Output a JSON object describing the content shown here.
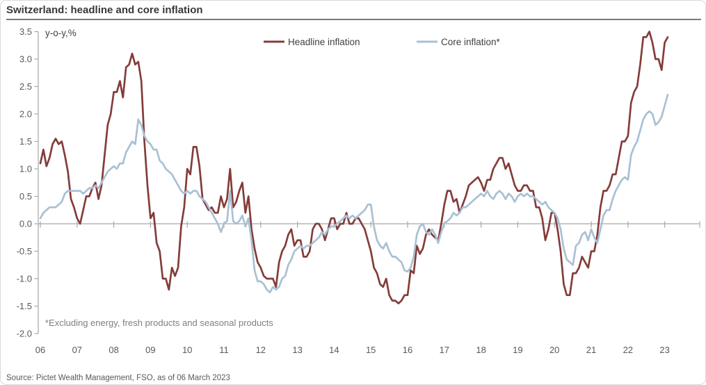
{
  "header": {
    "title": "Switzerland: headline and core inflation"
  },
  "footer": {
    "source": "Source: Pictet Wealth Management, FSO, as of 06 March 2023"
  },
  "chart": {
    "unit_label": "y-o-y,%",
    "footnote": "*Excluding energy, fresh products and seasonal products",
    "legend": [
      {
        "label": "Headline inflation"
      },
      {
        "label": "Core inflation*"
      }
    ]
  },
  "chart_data": {
    "type": "line",
    "title": "Switzerland: headline and core inflation",
    "xlabel": "",
    "ylabel": "y-o-y,%",
    "ylim": [
      -2.0,
      3.5
    ],
    "y_tick_labels": [
      "3.5",
      "3.0",
      "2.5",
      "2.0",
      "1.5",
      "1.0",
      "0.5",
      "0.0",
      "-0.5",
      "-1.0",
      "-1.5",
      "-2.0"
    ],
    "x_tick_labels": [
      "06",
      "07",
      "08",
      "09",
      "10",
      "11",
      "12",
      "13",
      "14",
      "15",
      "16",
      "17",
      "18",
      "19",
      "20",
      "21",
      "22",
      "23"
    ],
    "x_start": "2006-01",
    "x_end": "2023-02",
    "frequency": "monthly",
    "grid": "zero-line-only",
    "legend_position": "top",
    "axis_color": "#a6a6a6",
    "series": [
      {
        "name": "Headline inflation",
        "color": "#843C39",
        "values": [
          1.1,
          1.35,
          1.05,
          1.2,
          1.45,
          1.55,
          1.45,
          1.5,
          1.25,
          0.95,
          0.45,
          0.3,
          0.1,
          0.0,
          0.25,
          0.5,
          0.5,
          0.65,
          0.75,
          0.45,
          0.7,
          1.25,
          1.8,
          2.0,
          2.4,
          2.4,
          2.6,
          2.3,
          2.85,
          2.9,
          3.1,
          2.9,
          2.95,
          2.6,
          1.5,
          0.7,
          0.1,
          0.2,
          -0.35,
          -0.5,
          -1.0,
          -1.0,
          -1.2,
          -0.8,
          -0.95,
          -0.8,
          -0.05,
          0.3,
          1.0,
          0.9,
          1.4,
          1.4,
          1.05,
          0.45,
          0.35,
          0.25,
          0.3,
          0.2,
          0.2,
          0.5,
          0.3,
          0.45,
          1.0,
          0.3,
          0.4,
          0.6,
          0.75,
          0.2,
          0.5,
          -0.1,
          -0.45,
          -0.7,
          -0.8,
          -0.95,
          -1.0,
          -1.0,
          -1.0,
          -1.15,
          -0.7,
          -0.5,
          -0.4,
          -0.2,
          -0.1,
          -0.4,
          -0.3,
          -0.3,
          -0.6,
          -0.6,
          -0.5,
          -0.1,
          0.0,
          0.0,
          -0.1,
          -0.3,
          -0.1,
          0.1,
          0.1,
          -0.1,
          0.0,
          0.0,
          0.2,
          0.0,
          0.0,
          0.1,
          0.1,
          0.0,
          -0.1,
          -0.3,
          -0.5,
          -0.8,
          -0.9,
          -1.1,
          -1.15,
          -1.0,
          -1.3,
          -1.4,
          -1.4,
          -1.45,
          -1.4,
          -1.3,
          -1.3,
          -0.85,
          -0.9,
          -0.4,
          -0.55,
          -0.45,
          -0.2,
          -0.1,
          -0.2,
          -0.25,
          -0.3,
          0.0,
          0.35,
          0.6,
          0.6,
          0.4,
          0.45,
          0.2,
          0.35,
          0.5,
          0.7,
          0.75,
          0.8,
          0.85,
          0.75,
          0.6,
          0.8,
          0.8,
          1.0,
          1.1,
          1.2,
          1.2,
          1.0,
          1.1,
          0.9,
          0.7,
          0.6,
          0.6,
          0.7,
          0.7,
          0.6,
          0.6,
          0.3,
          0.3,
          0.1,
          -0.3,
          -0.1,
          0.2,
          0.2,
          -0.1,
          -0.5,
          -1.1,
          -1.3,
          -1.3,
          -0.9,
          -0.9,
          -0.8,
          -0.6,
          -0.7,
          -0.8,
          -0.5,
          -0.5,
          -0.2,
          0.3,
          0.6,
          0.6,
          0.7,
          0.9,
          0.9,
          1.2,
          1.5,
          1.5,
          1.6,
          2.2,
          2.4,
          2.5,
          2.9,
          3.4,
          3.4,
          3.5,
          3.3,
          3.0,
          3.0,
          2.8,
          3.3,
          3.4
        ]
      },
      {
        "name": "Core inflation*",
        "color": "#A9C0D4",
        "values": [
          0.1,
          0.2,
          0.25,
          0.3,
          0.3,
          0.3,
          0.35,
          0.4,
          0.55,
          0.6,
          0.6,
          0.6,
          0.6,
          0.6,
          0.55,
          0.6,
          0.65,
          0.65,
          0.7,
          0.65,
          0.75,
          0.85,
          0.95,
          1.0,
          1.05,
          1.0,
          1.1,
          1.1,
          1.3,
          1.4,
          1.5,
          1.45,
          1.9,
          1.8,
          1.6,
          1.5,
          1.45,
          1.35,
          1.35,
          1.15,
          1.1,
          1.0,
          0.95,
          0.9,
          0.8,
          0.7,
          0.6,
          0.55,
          0.6,
          0.55,
          0.6,
          0.6,
          0.5,
          0.45,
          0.4,
          0.3,
          0.2,
          0.1,
          0.0,
          -0.15,
          0.0,
          0.05,
          0.6,
          0.05,
          0.0,
          0.05,
          0.15,
          -0.05,
          0.1,
          -0.3,
          -0.85,
          -1.05,
          -1.05,
          -1.1,
          -1.2,
          -1.25,
          -1.15,
          -1.2,
          -1.15,
          -1.0,
          -0.95,
          -0.75,
          -0.65,
          -0.5,
          -0.45,
          -0.4,
          -0.45,
          -0.4,
          -0.4,
          -0.35,
          -0.3,
          -0.25,
          -0.15,
          -0.2,
          -0.1,
          -0.05,
          -0.05,
          0.0,
          0.05,
          0.1,
          0.15,
          0.1,
          0.15,
          0.1,
          0.15,
          0.2,
          0.25,
          0.35,
          0.35,
          -0.05,
          -0.3,
          -0.4,
          -0.45,
          -0.35,
          -0.5,
          -0.6,
          -0.6,
          -0.65,
          -0.7,
          -0.85,
          -0.87,
          -0.8,
          -0.6,
          -0.2,
          -0.05,
          0.0,
          -0.15,
          -0.2,
          -0.1,
          -0.2,
          -0.35,
          -0.15,
          0.0,
          0.05,
          0.1,
          0.2,
          0.15,
          0.2,
          0.3,
          0.3,
          0.35,
          0.4,
          0.45,
          0.5,
          0.55,
          0.5,
          0.6,
          0.5,
          0.45,
          0.55,
          0.6,
          0.55,
          0.45,
          0.55,
          0.5,
          0.4,
          0.5,
          0.55,
          0.5,
          0.55,
          0.5,
          0.5,
          0.45,
          0.4,
          0.35,
          0.4,
          0.3,
          0.25,
          0.2,
          0.1,
          -0.1,
          -0.45,
          -0.65,
          -0.7,
          -0.75,
          -0.4,
          -0.35,
          -0.2,
          -0.15,
          -0.3,
          -0.1,
          -0.25,
          -0.35,
          -0.1,
          0.15,
          0.25,
          0.25,
          0.45,
          0.6,
          0.7,
          0.8,
          0.85,
          0.8,
          1.25,
          1.4,
          1.5,
          1.7,
          1.9,
          2.0,
          2.05,
          2.0,
          1.8,
          1.85,
          1.95,
          2.15,
          2.35
        ]
      }
    ]
  }
}
